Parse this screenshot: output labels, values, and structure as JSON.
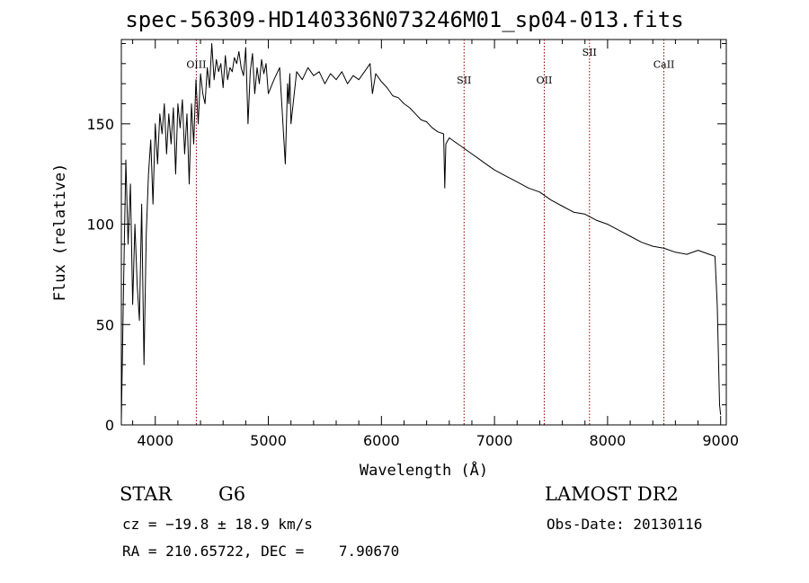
{
  "title": "spec-56309-HD140336N073246M01_sp04-013.fits",
  "info": {
    "object_type": "STAR",
    "subclass": "G6",
    "survey": "LAMOST DR2",
    "cz": "cz = −19.8 ± 18.9 km/s",
    "radec": "RA = 210.65722, DEC =    7.90670",
    "obs_date": "Obs-Date: 20130116"
  },
  "colors": {
    "spectrum": "#000000",
    "lines": "#8b0000",
    "axes": "#000000"
  },
  "chart_data": {
    "type": "line",
    "title": "spec-56309-HD140336N073246M01_sp04-013.fits",
    "xlabel": "Wavelength (Å)",
    "ylabel": "Flux (relative)",
    "xlim": [
      3700,
      9050
    ],
    "ylim": [
      0,
      192
    ],
    "xticks": [
      4000,
      5000,
      6000,
      7000,
      8000,
      9000
    ],
    "yticks": [
      0,
      50,
      100,
      150
    ],
    "grid": false,
    "series": [
      {
        "name": "flux",
        "x": [
          3700,
          3720,
          3740,
          3760,
          3780,
          3800,
          3820,
          3840,
          3860,
          3880,
          3900,
          3920,
          3940,
          3960,
          3980,
          4000,
          4020,
          4040,
          4060,
          4080,
          4100,
          4120,
          4140,
          4160,
          4180,
          4200,
          4220,
          4240,
          4260,
          4280,
          4300,
          4320,
          4340,
          4360,
          4380,
          4400,
          4420,
          4440,
          4460,
          4480,
          4500,
          4520,
          4540,
          4560,
          4580,
          4600,
          4620,
          4640,
          4660,
          4680,
          4700,
          4720,
          4740,
          4760,
          4780,
          4800,
          4820,
          4840,
          4860,
          4880,
          4900,
          4920,
          4940,
          4960,
          4980,
          5000,
          5050,
          5100,
          5150,
          5170,
          5180,
          5190,
          5200,
          5250,
          5300,
          5350,
          5400,
          5450,
          5500,
          5550,
          5600,
          5650,
          5700,
          5750,
          5800,
          5850,
          5900,
          5920,
          5950,
          6000,
          6050,
          6100,
          6150,
          6200,
          6250,
          6300,
          6350,
          6400,
          6450,
          6500,
          6550,
          6560,
          6570,
          6600,
          6650,
          6700,
          6750,
          6800,
          6850,
          6900,
          6950,
          7000,
          7100,
          7200,
          7300,
          7400,
          7500,
          7600,
          7700,
          7800,
          7900,
          8000,
          8100,
          8200,
          8300,
          8400,
          8500,
          8600,
          8700,
          8800,
          8900,
          8950,
          8970,
          8990,
          9000
        ],
        "values": [
          2,
          70,
          132,
          90,
          120,
          60,
          100,
          70,
          52,
          110,
          30,
          95,
          125,
          142,
          110,
          150,
          130,
          155,
          145,
          160,
          135,
          155,
          140,
          158,
          125,
          160,
          148,
          162,
          135,
          155,
          120,
          160,
          140,
          172,
          150,
          175,
          165,
          160,
          178,
          168,
          190,
          172,
          182,
          176,
          180,
          168,
          184,
          172,
          178,
          176,
          183,
          180,
          186,
          178,
          174,
          188,
          150,
          176,
          185,
          165,
          178,
          170,
          182,
          175,
          180,
          165,
          172,
          178,
          130,
          170,
          160,
          175,
          150,
          176,
          172,
          178,
          174,
          176,
          170,
          175,
          172,
          176,
          170,
          174,
          172,
          176,
          180,
          165,
          175,
          171,
          168,
          164,
          163,
          160,
          158,
          155,
          152,
          151,
          148,
          146,
          145,
          118,
          140,
          143,
          141,
          139,
          137,
          135,
          133,
          131,
          129,
          127,
          124,
          121,
          118,
          116,
          112,
          109,
          106,
          105,
          102,
          100,
          97,
          94,
          91,
          89,
          88,
          86,
          85,
          87,
          85,
          84,
          60,
          10,
          5
        ]
      }
    ],
    "annotations": [
      {
        "label": "OIII",
        "x": 4363,
        "label_y": 178
      },
      {
        "label": "SII",
        "x": 6731,
        "label_y": 170
      },
      {
        "label": "OII",
        "x": 7440,
        "label_y": 170
      },
      {
        "label": "SII",
        "x": 7840,
        "label_y": 184
      },
      {
        "label": "CaII",
        "x": 8498,
        "label_y": 178
      }
    ]
  }
}
